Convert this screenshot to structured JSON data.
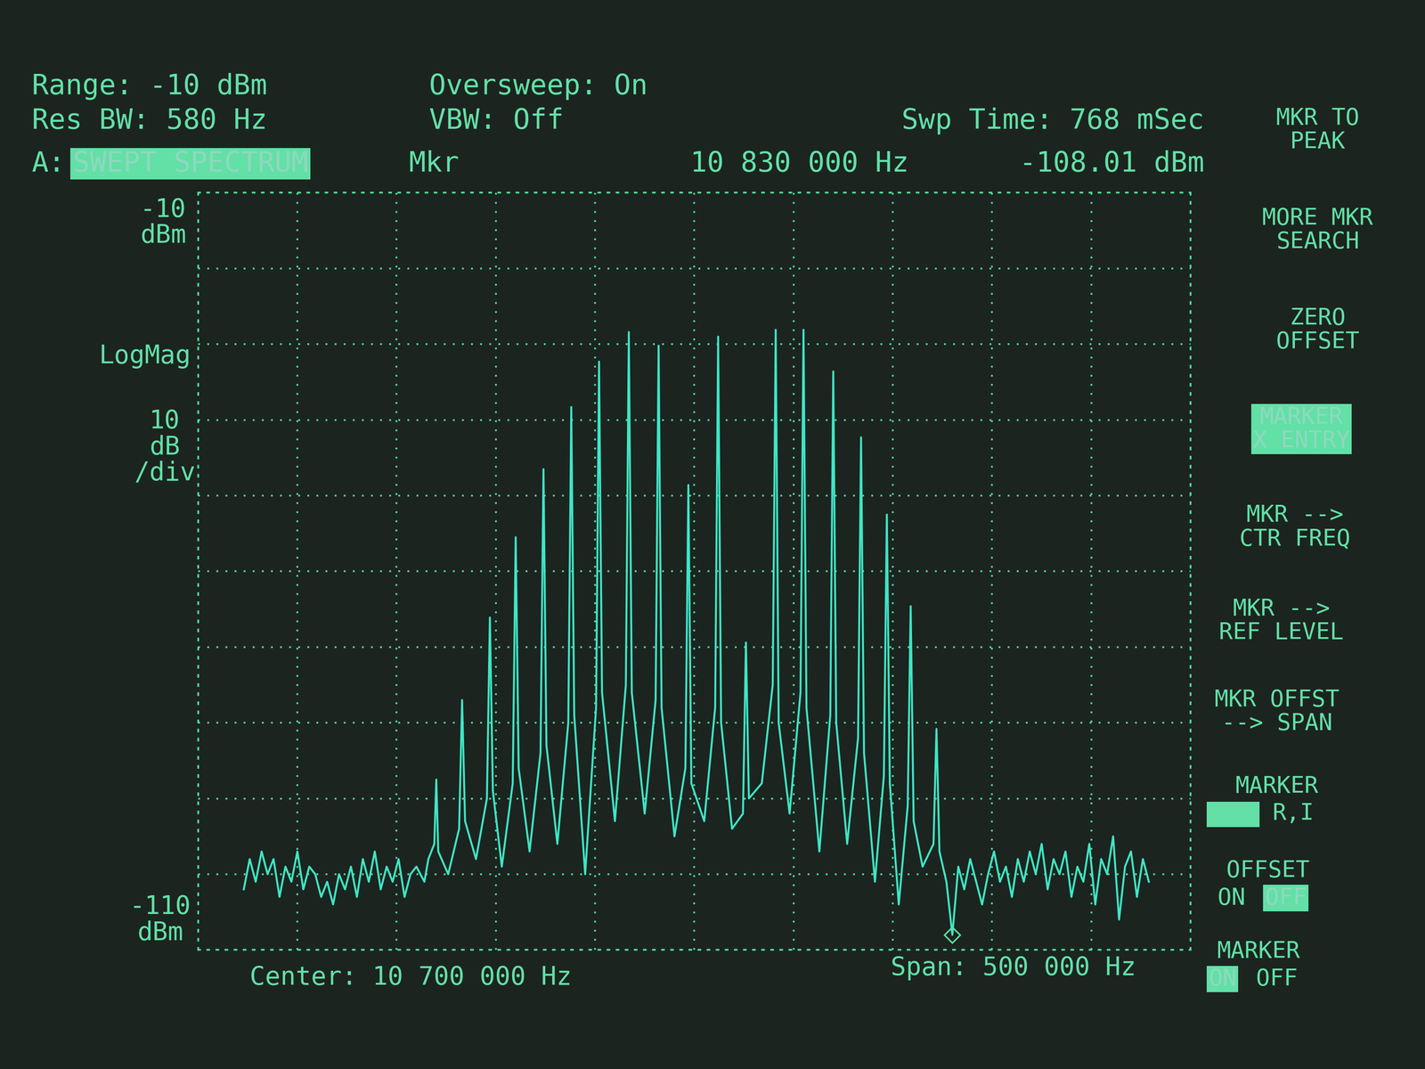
{
  "chart_data": {
    "type": "line",
    "color": "#3ee6c4",
    "grid": true,
    "tick_labels": false,
    "xlim": [
      10450000,
      10950000
    ],
    "xticks": [
      10450000,
      10500000,
      10550000,
      10600000,
      10650000,
      10700000,
      10750000,
      10800000,
      10850000,
      10900000,
      10950000
    ],
    "ylim": [
      -110,
      -10
    ],
    "yticks": [
      -110,
      -100,
      -90,
      -80,
      -70,
      -60,
      -50,
      -40,
      -30,
      -20,
      -10
    ],
    "x": [
      10473000,
      10476000,
      10479000,
      10482000,
      10485000,
      10488000,
      10491000,
      10494000,
      10497000,
      10500000,
      10503000,
      10506000,
      10509000,
      10512000,
      10515000,
      10518000,
      10521000,
      10524000,
      10527000,
      10530000,
      10533000,
      10536000,
      10539000,
      10542000,
      10545000,
      10548000,
      10551000,
      10554000,
      10557000,
      10560000,
      10564000,
      10566000,
      10569000,
      10570000,
      10571000,
      10576000,
      10581500,
      10583000,
      10584500,
      10590000,
      10595500,
      10597000,
      10598500,
      10603000,
      10608500,
      10610000,
      10611500,
      10617000,
      10622500,
      10624000,
      10625500,
      10631000,
      10636500,
      10638000,
      10639500,
      10645000,
      10650500,
      10652000,
      10653500,
      10660000,
      10665500,
      10667000,
      10668500,
      10675000,
      10680500,
      10682000,
      10683500,
      10690000,
      10695500,
      10697000,
      10698500,
      10705000,
      10710500,
      10712000,
      10713500,
      10719000,
      10724500,
      10726000,
      10727500,
      10734000,
      10739500,
      10741000,
      10742500,
      10748000,
      10753500,
      10755000,
      10756500,
      10763000,
      10768500,
      10770000,
      10771500,
      10777000,
      10782500,
      10784000,
      10785500,
      10791000,
      10795500,
      10797000,
      10798500,
      10803000,
      10807500,
      10809000,
      10810500,
      10815000,
      10820500,
      10822000,
      10823500,
      10827000,
      10830000,
      10833000,
      10836000,
      10839000,
      10842000,
      10845000,
      10848000,
      10851000,
      10854000,
      10857000,
      10860000,
      10863000,
      10866000,
      10869000,
      10872000,
      10875000,
      10878000,
      10881000,
      10884000,
      10887000,
      10890000,
      10893000,
      10896000,
      10899000,
      10902000,
      10905000,
      10908000,
      10911000,
      10914000,
      10917000,
      10920000,
      10923000,
      10926000,
      10929000
    ],
    "values": [
      -102,
      -98,
      -101,
      -97,
      -100,
      -98,
      -103,
      -99,
      -101,
      -97,
      -102,
      -99,
      -100,
      -103,
      -101,
      -104,
      -100,
      -102,
      -99,
      -103,
      -98,
      -101,
      -97,
      -102,
      -99,
      -101,
      -98,
      -103,
      -100,
      -99,
      -101,
      -98,
      -96,
      -87.5,
      -97,
      -100,
      -94,
      -77.0,
      -93,
      -98,
      -90,
      -66.1,
      -89,
      -99,
      -88,
      -55.5,
      -86,
      -97,
      -84,
      -46.5,
      -83,
      -96,
      -80,
      -38.3,
      -79,
      -100,
      -78,
      -32.3,
      -76,
      -93,
      -75,
      -28.4,
      -76,
      -92,
      -77,
      -30.2,
      -78,
      -95,
      -86,
      -48.6,
      -88,
      -93,
      -78,
      -29.0,
      -80,
      -94,
      -92,
      -69.4,
      -90,
      -88,
      -75,
      -28.1,
      -80,
      -92,
      -76,
      -28.1,
      -78,
      -97,
      -79,
      -33.6,
      -80,
      -96,
      -82,
      -42.3,
      -84,
      -101,
      -87,
      -52.5,
      -88,
      -104,
      -91,
      -64.6,
      -93,
      -99,
      -96,
      -80.8,
      -97,
      -101,
      -108.01,
      -99,
      -102,
      -98,
      -101,
      -104,
      -100,
      -97,
      -101,
      -99,
      -103,
      -98,
      -101,
      -97,
      -100,
      -96,
      -102,
      -98,
      -100,
      -97,
      -103,
      -99,
      -101,
      -96,
      -104,
      -98,
      -100,
      -95,
      -106,
      -99,
      -97,
      -103,
      -98,
      -101
    ],
    "marker_point": {
      "x": 10830000,
      "y": -108.01,
      "marker": "diamond"
    },
    "annotations": [
      "Range: -10 dBm",
      "Oversweep: On",
      "Res BW: 580 Hz",
      "VBW: Off",
      "Swp Time: 768 mSec",
      "A:",
      "SWEPT SPECTRUM",
      "Mkr",
      "10 830 000 Hz",
      "-108.01 dBm",
      "-10\ndBm",
      "LogMag",
      "10\ndB\n/div",
      "-110\ndBm",
      "Center: 10 700 000 Hz",
      "Span: 500 000 Hz",
      "MKR TO\nPEAK",
      "MORE MKR\nSEARCH",
      "ZERO\nOFFSET",
      "MARKER\nX ENTRY",
      "MKR -->\nCTR FREQ",
      "MKR -->\nREF LEVEL",
      "MKR OFFST\n--> SPAN",
      "MARKER",
      "R,I",
      "OFFSET",
      "ON",
      "OFF",
      "MARKER",
      "ON",
      "OFF"
    ]
  }
}
